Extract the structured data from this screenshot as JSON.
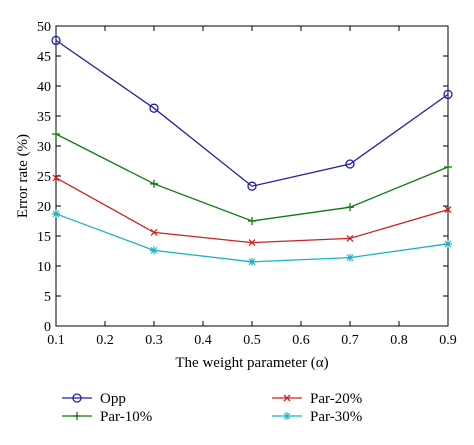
{
  "chart_data": {
    "type": "line",
    "title": "",
    "xlabel": "The weight parameter (α)",
    "ylabel": "Error rate (%)",
    "xlim": [
      0.1,
      0.9
    ],
    "ylim": [
      0,
      50
    ],
    "xticks": [
      "0.1",
      "0.2",
      "0.3",
      "0.4",
      "0.5",
      "0.6",
      "0.7",
      "0.8",
      "0.9"
    ],
    "yticks": [
      "0",
      "5",
      "10",
      "15",
      "20",
      "25",
      "30",
      "35",
      "40",
      "45",
      "50"
    ],
    "grid": false,
    "legend_placement": "bottom, outside plot, two columns",
    "x": [
      0.1,
      0.3,
      0.5,
      0.7,
      0.9
    ],
    "series": [
      {
        "name": "Opp",
        "values": [
          47.6,
          36.3,
          23.3,
          27.0,
          38.6
        ],
        "color": "#1f1fa8",
        "marker": "circle"
      },
      {
        "name": "Par-10%",
        "values": [
          32.0,
          23.7,
          17.5,
          19.8,
          26.5
        ],
        "color": "#0e7a0e",
        "marker": "plus"
      },
      {
        "name": "Par-20%",
        "values": [
          24.7,
          15.6,
          13.9,
          14.6,
          19.4
        ],
        "color": "#d02020",
        "marker": "cross"
      },
      {
        "name": "Par-30%",
        "values": [
          18.7,
          12.6,
          10.7,
          11.4,
          13.7
        ],
        "color": "#1ab3c0",
        "marker": "star"
      }
    ]
  }
}
